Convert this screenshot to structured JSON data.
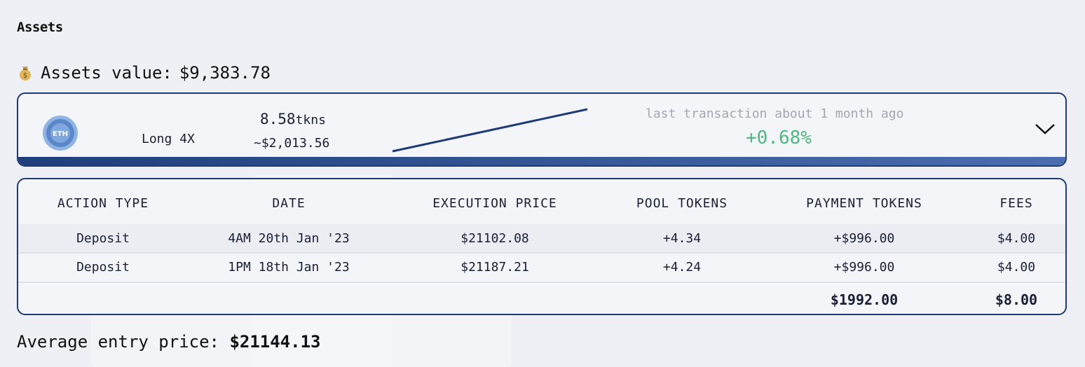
{
  "section_title": "Assets",
  "assets_value_label": "Assets value:",
  "assets_value": "$9,383.78",
  "position": {
    "token_icon": "eth-token-icon",
    "token_icon_text": "ETH",
    "type": "Long 4X",
    "tokens": "8.58",
    "tokens_unit": "tkns",
    "usd_value": "~$2,013.56",
    "last_transaction": "last transaction about 1 month ago",
    "change": "+0.68%",
    "change_color": "#4fb87e",
    "accent_color": "#1e3b77"
  },
  "table": {
    "headers": [
      "ACTION TYPE",
      "DATE",
      "EXECUTION PRICE",
      "POOL TOKENS",
      "PAYMENT TOKENS",
      "FEES"
    ],
    "rows": [
      [
        "Deposit",
        "4AM 20th Jan '23",
        "$21102.08",
        "+4.34",
        "+$996.00",
        "$4.00"
      ],
      [
        "Deposit",
        "1PM 18th Jan '23",
        "$21187.21",
        "+4.24",
        "+$996.00",
        "$4.00"
      ]
    ],
    "totals": {
      "payment_tokens": "$1992.00",
      "fees": "$8.00"
    }
  },
  "average_entry_label": "Average entry price:",
  "average_entry_price": "$21144.13"
}
